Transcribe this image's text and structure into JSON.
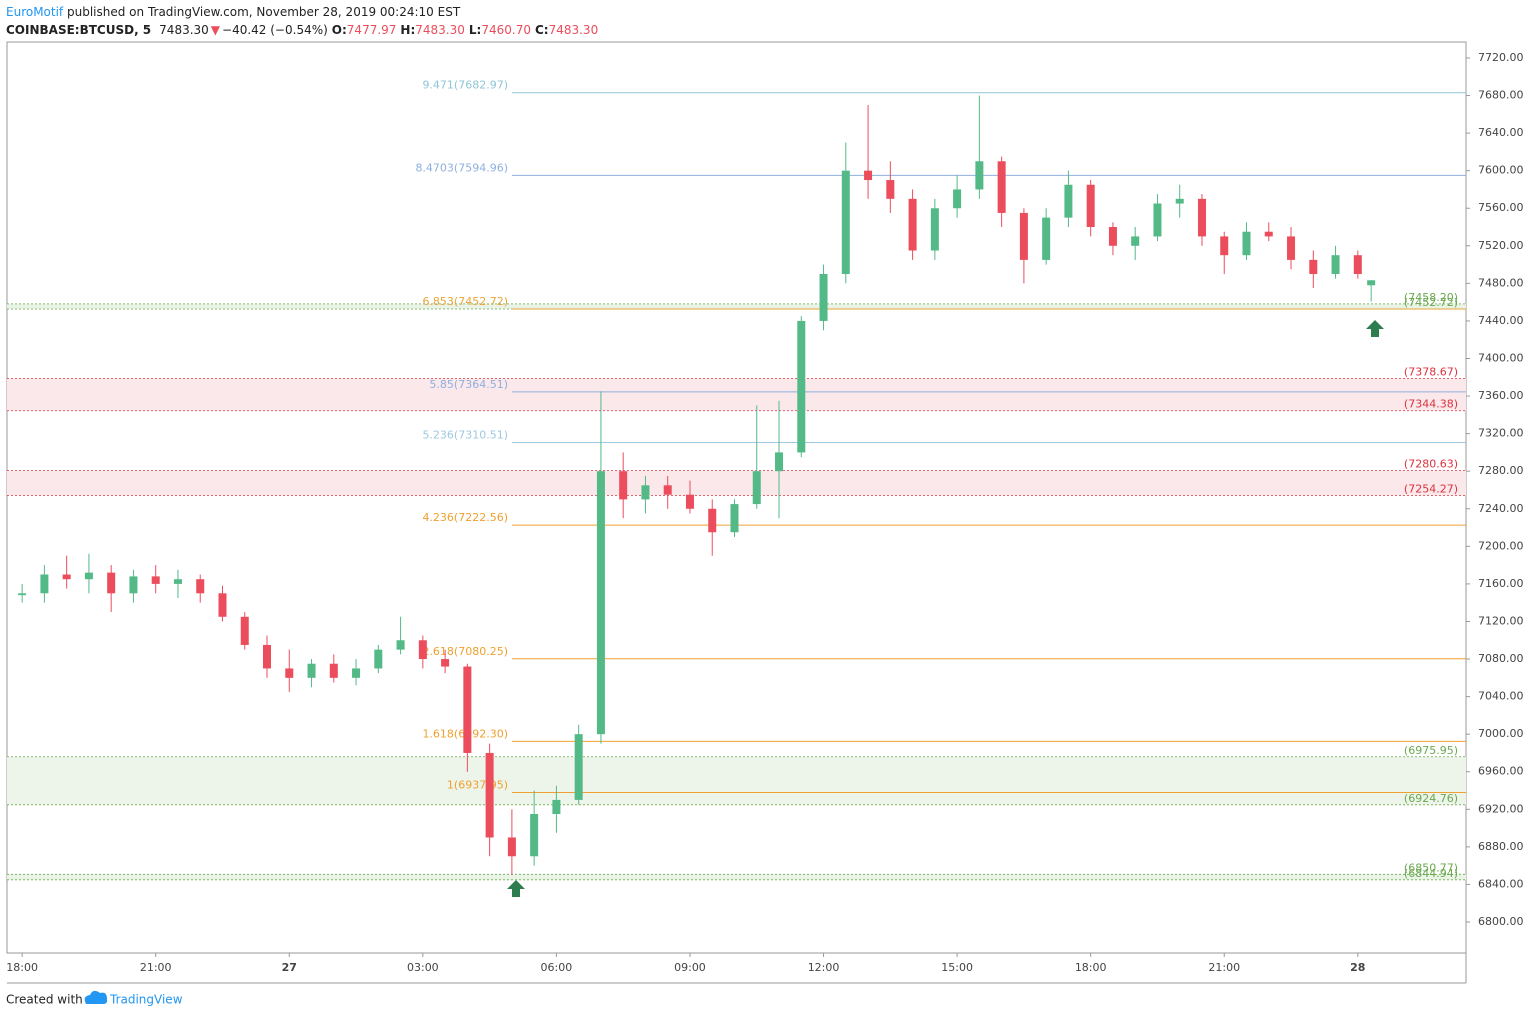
{
  "header": {
    "author": "EuroMotif",
    "published": "published on TradingView.com, November 28, 2019 00:24:10 EST",
    "symbol": "COINBASE:BTCUSD, 5",
    "last": "7483.30",
    "change": "−40.42 (−0.54%)",
    "o_label": "O:",
    "o": "7477.97",
    "h_label": "H:",
    "h": "7483.30",
    "l_label": "L:",
    "l": "7460.70",
    "c_label": "C:",
    "c": "7483.30"
  },
  "footer": {
    "created": "Created with",
    "brand": "TradingView"
  },
  "chart_data": {
    "type": "candlestick",
    "up_color": "#53b987",
    "down_color": "#eb4d5c",
    "x": [
      0,
      0.5,
      1,
      1.5,
      2,
      2.5,
      3,
      3.5,
      4,
      4.5,
      5,
      5.5,
      6,
      6.5,
      7,
      7.5,
      8,
      8.5,
      9,
      9.5,
      10,
      10.5,
      11,
      11.5,
      12,
      12.5,
      13,
      13.5,
      14,
      14.5,
      15,
      15.5,
      16,
      16.5,
      17,
      17.5,
      18,
      18.5,
      19,
      19.5,
      20,
      20.5,
      21,
      21.5,
      22,
      22.5,
      23,
      23.5,
      24,
      24.5,
      25,
      25.5,
      26,
      26.5,
      27,
      27.5,
      28,
      28.5,
      29,
      29.5,
      30,
      30.3
    ],
    "open": [
      7148,
      7150,
      7170,
      7165,
      7172,
      7150,
      7168,
      7160,
      7165,
      7150,
      7125,
      7095,
      7070,
      7060,
      7075,
      7060,
      7070,
      7090,
      7100,
      7080,
      7072,
      6980,
      6890,
      6870,
      6915,
      6930,
      7000,
      7280,
      7250,
      7265,
      7255,
      7240,
      7215,
      7245,
      7280,
      7300,
      7440,
      7490,
      7600,
      7590,
      7570,
      7515,
      7560,
      7580,
      7610,
      7555,
      7505,
      7550,
      7585,
      7540,
      7520,
      7530,
      7565,
      7570,
      7530,
      7510,
      7535,
      7530,
      7505,
      7490,
      7510,
      7477.97
    ],
    "high": [
      7160,
      7180,
      7190,
      7192,
      7180,
      7175,
      7180,
      7175,
      7170,
      7158,
      7130,
      7105,
      7090,
      7080,
      7085,
      7080,
      7095,
      7125,
      7105,
      7090,
      7075,
      6990,
      6920,
      6940,
      6945,
      7010,
      7365,
      7300,
      7275,
      7275,
      7270,
      7250,
      7250,
      7350,
      7355,
      7445,
      7500,
      7630,
      7670,
      7610,
      7580,
      7570,
      7595,
      7680,
      7615,
      7560,
      7560,
      7600,
      7590,
      7545,
      7540,
      7575,
      7585,
      7575,
      7535,
      7545,
      7545,
      7540,
      7515,
      7520,
      7515,
      7483.3
    ],
    "low": [
      7140,
      7140,
      7155,
      7150,
      7130,
      7140,
      7150,
      7145,
      7140,
      7120,
      7090,
      7060,
      7045,
      7050,
      7055,
      7052,
      7065,
      7085,
      7070,
      7065,
      6960,
      6870,
      6850,
      6860,
      6895,
      6925,
      6990,
      7230,
      7235,
      7240,
      7235,
      7190,
      7210,
      7240,
      7230,
      7295,
      7430,
      7480,
      7570,
      7555,
      7505,
      7505,
      7550,
      7570,
      7540,
      7480,
      7500,
      7540,
      7530,
      7510,
      7505,
      7525,
      7550,
      7520,
      7490,
      7505,
      7525,
      7495,
      7475,
      7485,
      7485,
      7460.7
    ],
    "close": [
      7150,
      7170,
      7165,
      7172,
      7150,
      7168,
      7160,
      7165,
      7150,
      7125,
      7095,
      7070,
      7060,
      7075,
      7060,
      7070,
      7090,
      7100,
      7080,
      7072,
      6980,
      6890,
      6870,
      6915,
      6930,
      7000,
      7280,
      7250,
      7265,
      7255,
      7240,
      7215,
      7245,
      7280,
      7300,
      7440,
      7490,
      7600,
      7590,
      7570,
      7515,
      7560,
      7580,
      7610,
      7555,
      7505,
      7550,
      7585,
      7540,
      7520,
      7530,
      7565,
      7570,
      7530,
      7510,
      7535,
      7530,
      7505,
      7490,
      7510,
      7490,
      7483.3
    ],
    "xlim": [
      -0.34,
      32.43
    ],
    "xticks": [
      {
        "value": 0,
        "label": "18:00"
      },
      {
        "value": 3,
        "label": "21:00"
      },
      {
        "value": 6,
        "label": "27"
      },
      {
        "value": 9,
        "label": "03:00"
      },
      {
        "value": 12,
        "label": "06:00"
      },
      {
        "value": 15,
        "label": "09:00"
      },
      {
        "value": 18,
        "label": "12:00"
      },
      {
        "value": 21,
        "label": "15:00"
      },
      {
        "value": 24,
        "label": "18:00"
      },
      {
        "value": 27,
        "label": "21:00"
      },
      {
        "value": 30,
        "label": "28"
      }
    ],
    "ylim": [
      6767,
      7737
    ],
    "yticks": [
      {
        "value": 6800,
        "label": "6800.00"
      },
      {
        "value": 6840,
        "label": "6840.00"
      },
      {
        "value": 6880,
        "label": "6880.00"
      },
      {
        "value": 6920,
        "label": "6920.00"
      },
      {
        "value": 6960,
        "label": "6960.00"
      },
      {
        "value": 7000,
        "label": "7000.00"
      },
      {
        "value": 7040,
        "label": "7040.00"
      },
      {
        "value": 7080,
        "label": "7080.00"
      },
      {
        "value": 7120,
        "label": "7120.00"
      },
      {
        "value": 7160,
        "label": "7160.00"
      },
      {
        "value": 7200,
        "label": "7200.00"
      },
      {
        "value": 7240,
        "label": "7240.00"
      },
      {
        "value": 7280,
        "label": "7280.00"
      },
      {
        "value": 7320,
        "label": "7320.00"
      },
      {
        "value": 7360,
        "label": "7360.00"
      },
      {
        "value": 7400,
        "label": "7400.00"
      },
      {
        "value": 7440,
        "label": "7440.00"
      },
      {
        "value": 7480,
        "label": "7480.00"
      },
      {
        "value": 7520,
        "label": "7520.00"
      },
      {
        "value": 7560,
        "label": "7560.00"
      },
      {
        "value": 7600,
        "label": "7600.00"
      },
      {
        "value": 7640,
        "label": "7640.00"
      },
      {
        "value": 7680,
        "label": "7680.00"
      },
      {
        "value": 7720,
        "label": "7720.00"
      }
    ],
    "fib_levels": [
      {
        "label": "9.471(7682.97)",
        "price": 7682.97,
        "color": "#8fc6d6"
      },
      {
        "label": "8.4703(7594.96)",
        "price": 7594.96,
        "color": "#8eb0e0"
      },
      {
        "label": "6.853(7452.72)",
        "price": 7452.72,
        "color": "#e8a53a"
      },
      {
        "label": "5.85(7364.51)",
        "price": 7364.51,
        "color": "#8eb0e0"
      },
      {
        "label": "5.236(7310.51)",
        "price": 7310.51,
        "color": "#9ec8e0"
      },
      {
        "label": "4.236(7222.56)",
        "price": 7222.56,
        "color": "#f0a030"
      },
      {
        "label": "2.618(7080.25)",
        "price": 7080.25,
        "color": "#f0a030"
      },
      {
        "label": "1.618(6992.30)",
        "price": 6992.3,
        "color": "#f0a030"
      },
      {
        "label": "1(6937.95)",
        "price": 6937.95,
        "color": "#f0a030"
      }
    ],
    "zones": [
      {
        "top": {
          "value": 7458.2,
          "label": "(7458.20)"
        },
        "bottom": {
          "value": 7452.72,
          "label": "(7452.72)"
        },
        "color": "#6aa84f",
        "fill": "#e9f3e6"
      },
      {
        "top": {
          "value": 7378.67,
          "label": "(7378.67)"
        },
        "bottom": {
          "value": 7344.38,
          "label": "(7344.38)"
        },
        "color": "#d9333f",
        "fill": "#fbe8ea"
      },
      {
        "top": {
          "value": 7280.63,
          "label": "(7280.63)"
        },
        "bottom": {
          "value": 7254.27,
          "label": "(7254.27)"
        },
        "color": "#d9333f",
        "fill": "#fbe8ea"
      },
      {
        "top": {
          "value": 6975.95,
          "label": "(6975.95)"
        },
        "bottom": {
          "value": 6924.76,
          "label": "(6924.76)"
        },
        "color": "#6aa84f",
        "fill": "#edf4ea"
      },
      {
        "top": {
          "value": 6850.77,
          "label": "(6850.77)"
        },
        "bottom": {
          "value": 6844.94,
          "label": "(6844.94)"
        },
        "color": "#6aa84f",
        "fill": "#e9f3e6"
      }
    ]
  }
}
